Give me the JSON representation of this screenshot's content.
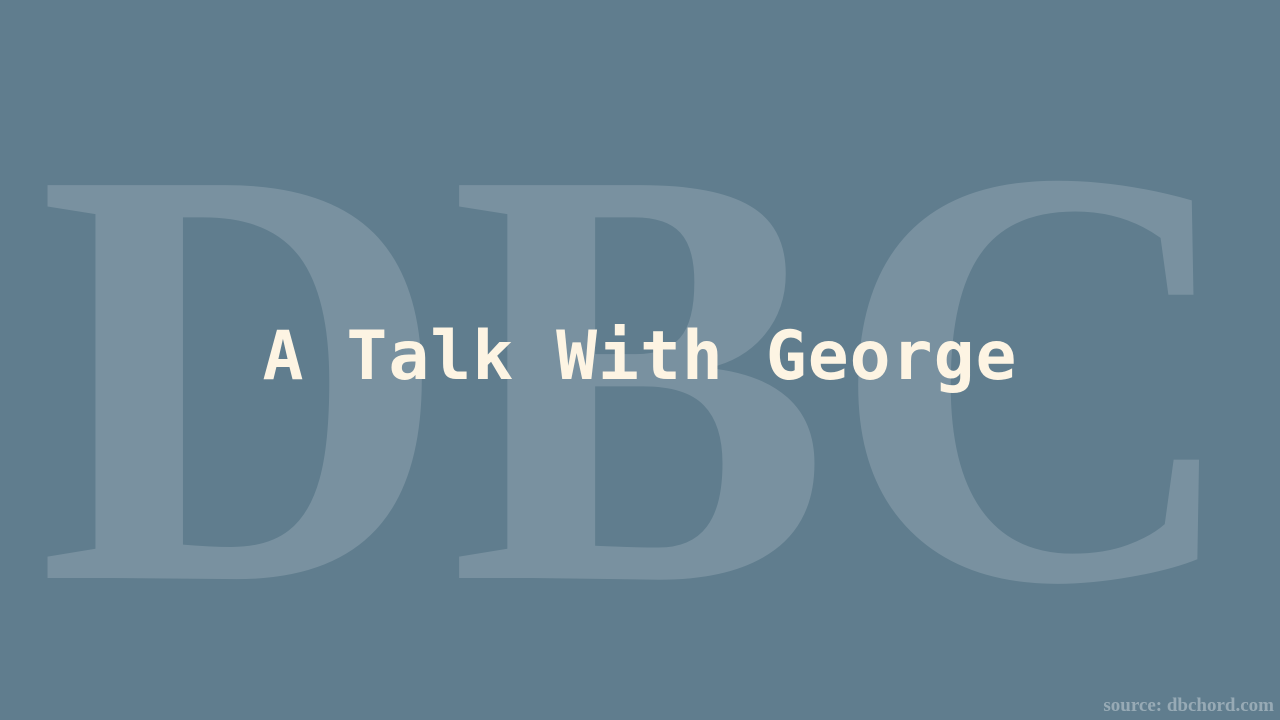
{
  "background": {
    "color": "#607d8e",
    "logo_text": "DBC"
  },
  "title": "A Talk With George",
  "title_color": "#fdf4e3",
  "source": "source: dbchord.com"
}
